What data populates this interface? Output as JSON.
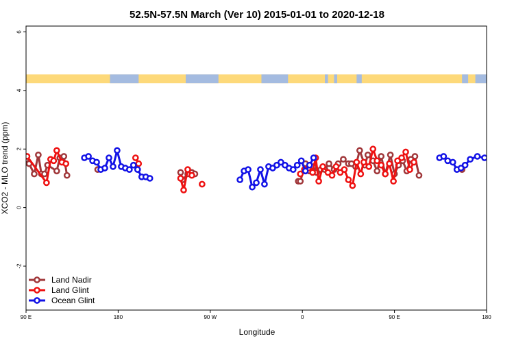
{
  "chart_data": {
    "type": "line",
    "title": "52.5N-57.5N March (Ver 10)   2015-01-01 to 2020-12-18",
    "xlabel": "Longitude",
    "ylabel": "XCO2 - MLO trend (ppm)",
    "xlim": [
      -90,
      360
    ],
    "ylim": [
      -3.5,
      6.2
    ],
    "x_ticks": [
      {
        "x": -90,
        "label": "90 E"
      },
      {
        "x": 0,
        "label": "180"
      },
      {
        "x": 90,
        "label": "90 W"
      },
      {
        "x": 180,
        "label": "0"
      },
      {
        "x": 270,
        "label": "90 E"
      },
      {
        "x": 360,
        "label": "180"
      }
    ],
    "y_ticks": [
      -2,
      0,
      2,
      4,
      6
    ],
    "land_strip": {
      "ymin": 4.25,
      "ymax": 4.55,
      "land_color": "#fdd97a",
      "ocean_color": "#a4bbe0"
    },
    "legend_position": "bottom-left",
    "series": [
      {
        "name": "Land Nadir",
        "color": "#a0373a",
        "segments": [
          [
            [
              -90,
              1.65
            ],
            [
              -87,
              1.5
            ],
            [
              -82,
              1.15
            ],
            [
              -78,
              1.8
            ],
            [
              -75,
              1.15
            ],
            [
              -72,
              1.15
            ],
            [
              -69,
              1.45
            ],
            [
              -60,
              1.25
            ],
            [
              -57,
              1.7
            ],
            [
              -53,
              1.75
            ],
            [
              -50,
              1.1
            ]
          ],
          [
            [
              -20,
              1.3
            ]
          ],
          [
            [
              61,
              1.2
            ],
            [
              63,
              0.95
            ],
            [
              68,
              1.15
            ],
            [
              72,
              1.2
            ],
            [
              75,
              1.15
            ]
          ],
          [
            [
              176,
              0.9
            ],
            [
              178,
              0.9
            ],
            [
              183,
              1.5
            ],
            [
              187,
              1.25
            ],
            [
              191,
              1.4
            ],
            [
              194,
              1.2
            ],
            [
              198,
              1.3
            ],
            [
              202,
              1.3
            ],
            [
              206,
              1.5
            ],
            [
              211,
              1.3
            ],
            [
              215,
              1.5
            ],
            [
              220,
              1.65
            ],
            [
              225,
              1.5
            ],
            [
              228,
              1.5
            ],
            [
              232,
              1.4
            ],
            [
              236,
              1.95
            ],
            [
              241,
              1.45
            ],
            [
              244,
              1.8
            ],
            [
              249,
              1.6
            ],
            [
              253,
              1.25
            ],
            [
              257,
              1.75
            ],
            [
              261,
              1.15
            ],
            [
              266,
              1.8
            ],
            [
              270,
              1.15
            ],
            [
              274,
              1.45
            ],
            [
              278,
              1.6
            ],
            [
              282,
              1.25
            ],
            [
              286,
              1.65
            ],
            [
              290,
              1.75
            ],
            [
              294,
              1.1
            ]
          ],
          [
            [
              336,
              1.3
            ]
          ]
        ]
      },
      {
        "name": "Land Glint",
        "color": "#ee1111",
        "segments": [
          [
            [
              -89,
              1.75
            ],
            [
              -70,
              0.85
            ],
            [
              -66,
              1.65
            ],
            [
              -63,
              1.6
            ],
            [
              -60,
              1.95
            ],
            [
              -55,
              1.55
            ],
            [
              -51,
              1.5
            ]
          ],
          [
            [
              17,
              1.7
            ],
            [
              20,
              1.5
            ]
          ],
          [
            [
              61,
              1.0
            ],
            [
              64,
              0.6
            ],
            [
              68,
              1.3
            ],
            [
              72,
              1.1
            ]
          ],
          [
            [
              82,
              0.8
            ]
          ],
          [
            [
              178,
              1.15
            ],
            [
              182,
              1.3
            ],
            [
              186,
              1.35
            ],
            [
              190,
              1.2
            ],
            [
              193,
              1.7
            ],
            [
              196,
              0.9
            ],
            [
              200,
              1.4
            ],
            [
              205,
              1.2
            ],
            [
              209,
              1.1
            ],
            [
              213,
              1.4
            ],
            [
              217,
              1.2
            ],
            [
              221,
              1.3
            ],
            [
              225,
              0.95
            ],
            [
              229,
              0.75
            ],
            [
              233,
              1.55
            ],
            [
              237,
              1.15
            ],
            [
              240,
              1.55
            ],
            [
              245,
              1.4
            ],
            [
              249,
              2.0
            ],
            [
              253,
              1.6
            ],
            [
              257,
              1.45
            ],
            [
              261,
              1.15
            ],
            [
              265,
              1.5
            ],
            [
              269,
              0.9
            ],
            [
              273,
              1.6
            ],
            [
              277,
              1.7
            ],
            [
              281,
              1.9
            ],
            [
              285,
              1.3
            ],
            [
              289,
              1.55
            ]
          ]
        ]
      },
      {
        "name": "Ocean Glint",
        "color": "#1212e6",
        "segments": [
          [
            [
              -33,
              1.7
            ],
            [
              -29,
              1.75
            ],
            [
              -25,
              1.6
            ],
            [
              -21,
              1.55
            ],
            [
              -17,
              1.3
            ],
            [
              -13,
              1.35
            ],
            [
              -9,
              1.7
            ],
            [
              -5,
              1.4
            ],
            [
              -1,
              1.95
            ],
            [
              3,
              1.4
            ],
            [
              7,
              1.35
            ],
            [
              11,
              1.3
            ],
            [
              15,
              1.45
            ],
            [
              19,
              1.3
            ],
            [
              23,
              1.05
            ],
            [
              27,
              1.05
            ],
            [
              31,
              1.0
            ]
          ],
          [
            [
              119,
              0.95
            ],
            [
              123,
              1.25
            ],
            [
              127,
              1.3
            ],
            [
              131,
              0.7
            ],
            [
              135,
              0.85
            ],
            [
              139,
              1.3
            ],
            [
              143,
              0.8
            ],
            [
              147,
              1.4
            ],
            [
              151,
              1.35
            ],
            [
              155,
              1.45
            ],
            [
              159,
              1.55
            ],
            [
              163,
              1.45
            ],
            [
              167,
              1.35
            ],
            [
              171,
              1.3
            ],
            [
              175,
              1.45
            ],
            [
              179,
              1.6
            ],
            [
              183,
              1.25
            ],
            [
              187,
              1.45
            ],
            [
              191,
              1.7
            ]
          ],
          [
            [
              314,
              1.7
            ],
            [
              318,
              1.75
            ],
            [
              322,
              1.6
            ],
            [
              327,
              1.55
            ],
            [
              331,
              1.3
            ],
            [
              335,
              1.35
            ],
            [
              339,
              1.45
            ],
            [
              344,
              1.65
            ],
            [
              351,
              1.75
            ],
            [
              358,
              1.7
            ]
          ]
        ]
      }
    ]
  }
}
